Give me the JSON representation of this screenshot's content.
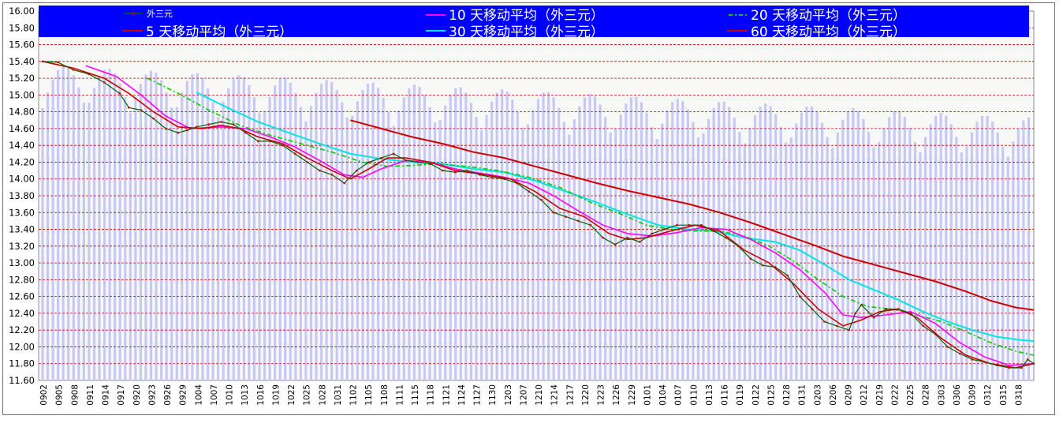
{
  "chart_data": {
    "type": "line",
    "colors": {
      "legend_bg": "#0000ff",
      "price": "#006400",
      "price_marker": "#cc0000",
      "ma5": "#cc0000",
      "ma10": "#ff00ff",
      "ma20": "#00cc00",
      "ma30": "#00e5e5",
      "ma60": "#cc0000",
      "volume_bar": "#c8c8f5",
      "grid": "#cc0000"
    },
    "legend": [
      {
        "key": "price",
        "label": "外三元"
      },
      {
        "key": "ma10",
        "label": "10 天移动平均（外三元）"
      },
      {
        "key": "ma20",
        "label": "20 天移动平均（外三元）"
      },
      {
        "key": "ma5",
        "label": "5 天移动平均（外三元）"
      },
      {
        "key": "ma30",
        "label": "30 天移动平均（外三元）"
      },
      {
        "key": "ma60",
        "label": "60 天移动平均（外三元）"
      }
    ],
    "y_ticks": [
      "16.00",
      "15.80",
      "15.60",
      "15.40",
      "15.20",
      "15.00",
      "14.80",
      "14.60",
      "14.40",
      "14.20",
      "14.00",
      "13.80",
      "13.60",
      "13.40",
      "13.20",
      "13.00",
      "12.80",
      "12.60",
      "12.40",
      "12.20",
      "12.00",
      "11.80",
      "11.60"
    ],
    "ylim": [
      11.6,
      16.0
    ],
    "x_ticks": [
      "0902",
      "0905",
      "0908",
      "0911",
      "0914",
      "0917",
      "0920",
      "0923",
      "0926",
      "0929",
      "1004",
      "1007",
      "1010",
      "1013",
      "1016",
      "1019",
      "1022",
      "1025",
      "1028",
      "1031",
      "1102",
      "1105",
      "1108",
      "1111",
      "1115",
      "1118",
      "1121",
      "1124",
      "1127",
      "1130",
      "1203",
      "1207",
      "1210",
      "1214",
      "1217",
      "1220",
      "1223",
      "1226",
      "1229",
      "0101",
      "0104",
      "0107",
      "0110",
      "0113",
      "0116",
      "0119",
      "0122",
      "0125",
      "0128",
      "0131",
      "0203",
      "0206",
      "0209",
      "0212",
      "0219",
      "0222",
      "0225",
      "0228",
      "0303",
      "0306",
      "0309",
      "0312",
      "0315",
      "0318"
    ],
    "n_points": 192,
    "series": {
      "price": [
        [
          0,
          15.4
        ],
        [
          5,
          15.39
        ],
        [
          10,
          15.3
        ],
        [
          15,
          15.25
        ],
        [
          20,
          15.15
        ],
        [
          25,
          15.02
        ],
        [
          28,
          14.85
        ],
        [
          32,
          14.82
        ],
        [
          36,
          14.72
        ],
        [
          40,
          14.6
        ],
        [
          44,
          14.55
        ],
        [
          47,
          14.58
        ],
        [
          50,
          14.62
        ],
        [
          54,
          14.65
        ],
        [
          58,
          14.68
        ],
        [
          62,
          14.65
        ],
        [
          66,
          14.55
        ],
        [
          70,
          14.45
        ],
        [
          74,
          14.45
        ],
        [
          78,
          14.4
        ],
        [
          82,
          14.3
        ],
        [
          86,
          14.2
        ],
        [
          90,
          14.1
        ],
        [
          94,
          14.05
        ],
        [
          98,
          13.95
        ],
        [
          102,
          14.1
        ],
        [
          106,
          14.2
        ],
        [
          110,
          14.25
        ],
        [
          114,
          14.3
        ],
        [
          118,
          14.22
        ],
        [
          122,
          14.2
        ],
        [
          126,
          14.18
        ],
        [
          130,
          14.1
        ],
        [
          134,
          14.08
        ],
        [
          138,
          14.1
        ],
        [
          142,
          14.05
        ],
        [
          146,
          14.02
        ],
        [
          150,
          14.0
        ],
        [
          154,
          13.95
        ],
        [
          158,
          13.85
        ],
        [
          162,
          13.75
        ],
        [
          166,
          13.6
        ],
        [
          170,
          13.55
        ],
        [
          174,
          13.5
        ],
        [
          178,
          13.45
        ],
        [
          182,
          13.3
        ],
        [
          186,
          13.22
        ],
        [
          190,
          13.3
        ],
        [
          194,
          13.25
        ],
        [
          198,
          13.35
        ],
        [
          202,
          13.4
        ],
        [
          206,
          13.45
        ],
        [
          210,
          13.45
        ],
        [
          214,
          13.45
        ],
        [
          218,
          13.38
        ],
        [
          222,
          13.3
        ],
        [
          226,
          13.2
        ],
        [
          230,
          13.05
        ],
        [
          234,
          12.97
        ],
        [
          238,
          12.95
        ],
        [
          242,
          12.85
        ],
        [
          246,
          12.6
        ],
        [
          250,
          12.45
        ],
        [
          254,
          12.3
        ],
        [
          258,
          12.25
        ],
        [
          262,
          12.2
        ],
        [
          264,
          12.4
        ],
        [
          266,
          12.5
        ],
        [
          270,
          12.35
        ],
        [
          274,
          12.45
        ],
        [
          278,
          12.45
        ],
        [
          282,
          12.4
        ],
        [
          286,
          12.25
        ],
        [
          290,
          12.15
        ],
        [
          294,
          12.0
        ],
        [
          298,
          11.92
        ],
        [
          302,
          11.85
        ],
        [
          306,
          11.82
        ],
        [
          310,
          11.78
        ],
        [
          314,
          11.75
        ],
        [
          318,
          11.75
        ],
        [
          320,
          11.85
        ],
        [
          322,
          11.8
        ]
      ],
      "ma5": [
        [
          0,
          15.4
        ],
        [
          10,
          15.32
        ],
        [
          20,
          15.2
        ],
        [
          28,
          15.02
        ],
        [
          36,
          14.8
        ],
        [
          44,
          14.62
        ],
        [
          52,
          14.6
        ],
        [
          58,
          14.64
        ],
        [
          64,
          14.6
        ],
        [
          70,
          14.5
        ],
        [
          78,
          14.42
        ],
        [
          86,
          14.25
        ],
        [
          94,
          14.1
        ],
        [
          100,
          14.0
        ],
        [
          106,
          14.12
        ],
        [
          112,
          14.25
        ],
        [
          118,
          14.25
        ],
        [
          126,
          14.2
        ],
        [
          134,
          14.1
        ],
        [
          144,
          14.05
        ],
        [
          152,
          14.0
        ],
        [
          160,
          13.85
        ],
        [
          168,
          13.65
        ],
        [
          176,
          13.55
        ],
        [
          184,
          13.35
        ],
        [
          190,
          13.28
        ],
        [
          196,
          13.3
        ],
        [
          204,
          13.38
        ],
        [
          212,
          13.45
        ],
        [
          220,
          13.38
        ],
        [
          228,
          13.15
        ],
        [
          236,
          13.0
        ],
        [
          244,
          12.75
        ],
        [
          252,
          12.45
        ],
        [
          260,
          12.25
        ],
        [
          266,
          12.32
        ],
        [
          272,
          12.42
        ],
        [
          278,
          12.45
        ],
        [
          284,
          12.35
        ],
        [
          292,
          12.1
        ],
        [
          300,
          11.9
        ],
        [
          308,
          11.8
        ],
        [
          316,
          11.75
        ],
        [
          322,
          11.8
        ]
      ],
      "ma10": [
        [
          14,
          15.35
        ],
        [
          24,
          15.22
        ],
        [
          32,
          15.0
        ],
        [
          40,
          14.75
        ],
        [
          48,
          14.6
        ],
        [
          58,
          14.62
        ],
        [
          66,
          14.6
        ],
        [
          74,
          14.5
        ],
        [
          82,
          14.38
        ],
        [
          90,
          14.22
        ],
        [
          98,
          14.05
        ],
        [
          104,
          14.02
        ],
        [
          110,
          14.12
        ],
        [
          118,
          14.22
        ],
        [
          126,
          14.2
        ],
        [
          134,
          14.12
        ],
        [
          142,
          14.07
        ],
        [
          150,
          14.02
        ],
        [
          158,
          13.95
        ],
        [
          166,
          13.8
        ],
        [
          174,
          13.62
        ],
        [
          182,
          13.45
        ],
        [
          190,
          13.35
        ],
        [
          198,
          13.32
        ],
        [
          206,
          13.36
        ],
        [
          214,
          13.42
        ],
        [
          222,
          13.4
        ],
        [
          230,
          13.28
        ],
        [
          238,
          13.12
        ],
        [
          246,
          12.92
        ],
        [
          254,
          12.65
        ],
        [
          260,
          12.38
        ],
        [
          266,
          12.35
        ],
        [
          274,
          12.38
        ],
        [
          282,
          12.42
        ],
        [
          290,
          12.28
        ],
        [
          298,
          12.05
        ],
        [
          306,
          11.88
        ],
        [
          314,
          11.78
        ],
        [
          322,
          11.8
        ]
      ],
      "ma20": [
        [
          34,
          15.2
        ],
        [
          44,
          15.02
        ],
        [
          54,
          14.82
        ],
        [
          64,
          14.64
        ],
        [
          74,
          14.52
        ],
        [
          84,
          14.42
        ],
        [
          94,
          14.32
        ],
        [
          104,
          14.2
        ],
        [
          112,
          14.15
        ],
        [
          120,
          14.16
        ],
        [
          128,
          14.18
        ],
        [
          138,
          14.15
        ],
        [
          148,
          14.1
        ],
        [
          158,
          14.02
        ],
        [
          168,
          13.9
        ],
        [
          178,
          13.72
        ],
        [
          188,
          13.58
        ],
        [
          196,
          13.45
        ],
        [
          204,
          13.4
        ],
        [
          212,
          13.38
        ],
        [
          220,
          13.38
        ],
        [
          228,
          13.32
        ],
        [
          236,
          13.2
        ],
        [
          244,
          13.02
        ],
        [
          252,
          12.8
        ],
        [
          260,
          12.6
        ],
        [
          268,
          12.48
        ],
        [
          276,
          12.45
        ],
        [
          284,
          12.38
        ],
        [
          292,
          12.3
        ],
        [
          300,
          12.18
        ],
        [
          308,
          12.05
        ],
        [
          316,
          11.95
        ],
        [
          322,
          11.9
        ]
      ],
      "ma30": [
        [
          50,
          15.03
        ],
        [
          60,
          14.85
        ],
        [
          70,
          14.68
        ],
        [
          80,
          14.55
        ],
        [
          90,
          14.42
        ],
        [
          100,
          14.3
        ],
        [
          110,
          14.24
        ],
        [
          120,
          14.2
        ],
        [
          130,
          14.18
        ],
        [
          140,
          14.12
        ],
        [
          150,
          14.08
        ],
        [
          160,
          13.98
        ],
        [
          170,
          13.85
        ],
        [
          180,
          13.72
        ],
        [
          190,
          13.58
        ],
        [
          200,
          13.45
        ],
        [
          210,
          13.4
        ],
        [
          218,
          13.38
        ],
        [
          228,
          13.3
        ],
        [
          238,
          13.25
        ],
        [
          246,
          13.15
        ],
        [
          254,
          12.98
        ],
        [
          262,
          12.8
        ],
        [
          270,
          12.68
        ],
        [
          278,
          12.56
        ],
        [
          286,
          12.42
        ],
        [
          294,
          12.3
        ],
        [
          302,
          12.2
        ],
        [
          310,
          12.12
        ],
        [
          318,
          12.08
        ],
        [
          322,
          12.07
        ]
      ],
      "ma60": [
        [
          100,
          14.7
        ],
        [
          110,
          14.6
        ],
        [
          120,
          14.5
        ],
        [
          130,
          14.42
        ],
        [
          140,
          14.32
        ],
        [
          150,
          14.25
        ],
        [
          160,
          14.15
        ],
        [
          170,
          14.05
        ],
        [
          180,
          13.95
        ],
        [
          190,
          13.86
        ],
        [
          200,
          13.78
        ],
        [
          210,
          13.7
        ],
        [
          220,
          13.6
        ],
        [
          230,
          13.48
        ],
        [
          240,
          13.35
        ],
        [
          250,
          13.22
        ],
        [
          260,
          13.08
        ],
        [
          270,
          12.98
        ],
        [
          280,
          12.88
        ],
        [
          290,
          12.78
        ],
        [
          300,
          12.66
        ],
        [
          308,
          12.55
        ],
        [
          316,
          12.47
        ],
        [
          322,
          12.44
        ]
      ]
    }
  }
}
